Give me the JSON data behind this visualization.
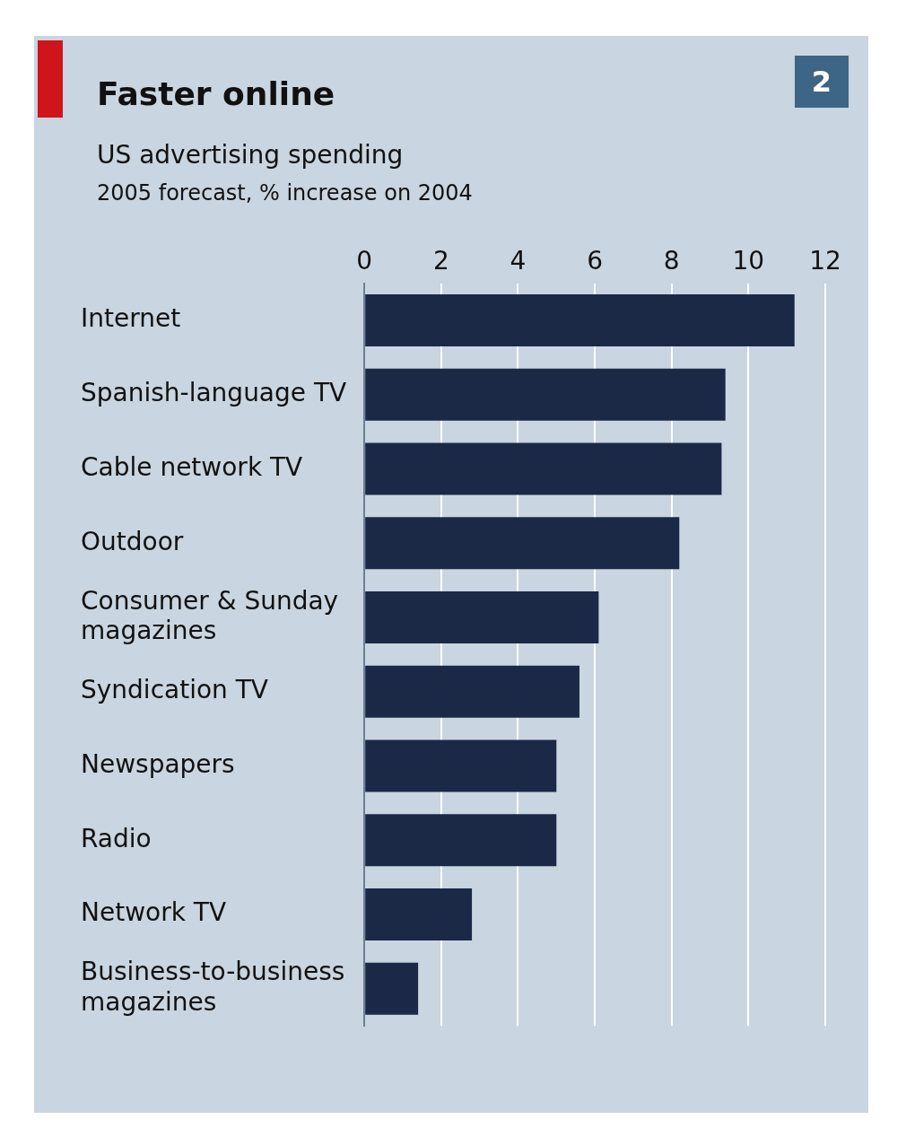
{
  "chart_data": {
    "type": "bar",
    "orientation": "horizontal",
    "title": "Faster online",
    "subtitle": "US advertising spending\n2005 forecast, % increase on 2004",
    "categories": [
      "Internet",
      "Spanish-language TV",
      "Cable network TV",
      "Outdoor",
      "Consumer & Sunday magazines",
      "Syndication TV",
      "Newspapers",
      "Radio",
      "Network TV",
      "Business-to-business magazines"
    ],
    "values": [
      11.2,
      9.4,
      9.3,
      8.2,
      6.1,
      5.6,
      5.0,
      5.0,
      2.8,
      1.4
    ],
    "color": "#1b2947",
    "xlim": [
      0,
      12
    ],
    "xticks": [
      0,
      2,
      4,
      6,
      8,
      10,
      12
    ],
    "grid": "x",
    "annotations": [
      "2"
    ]
  }
}
